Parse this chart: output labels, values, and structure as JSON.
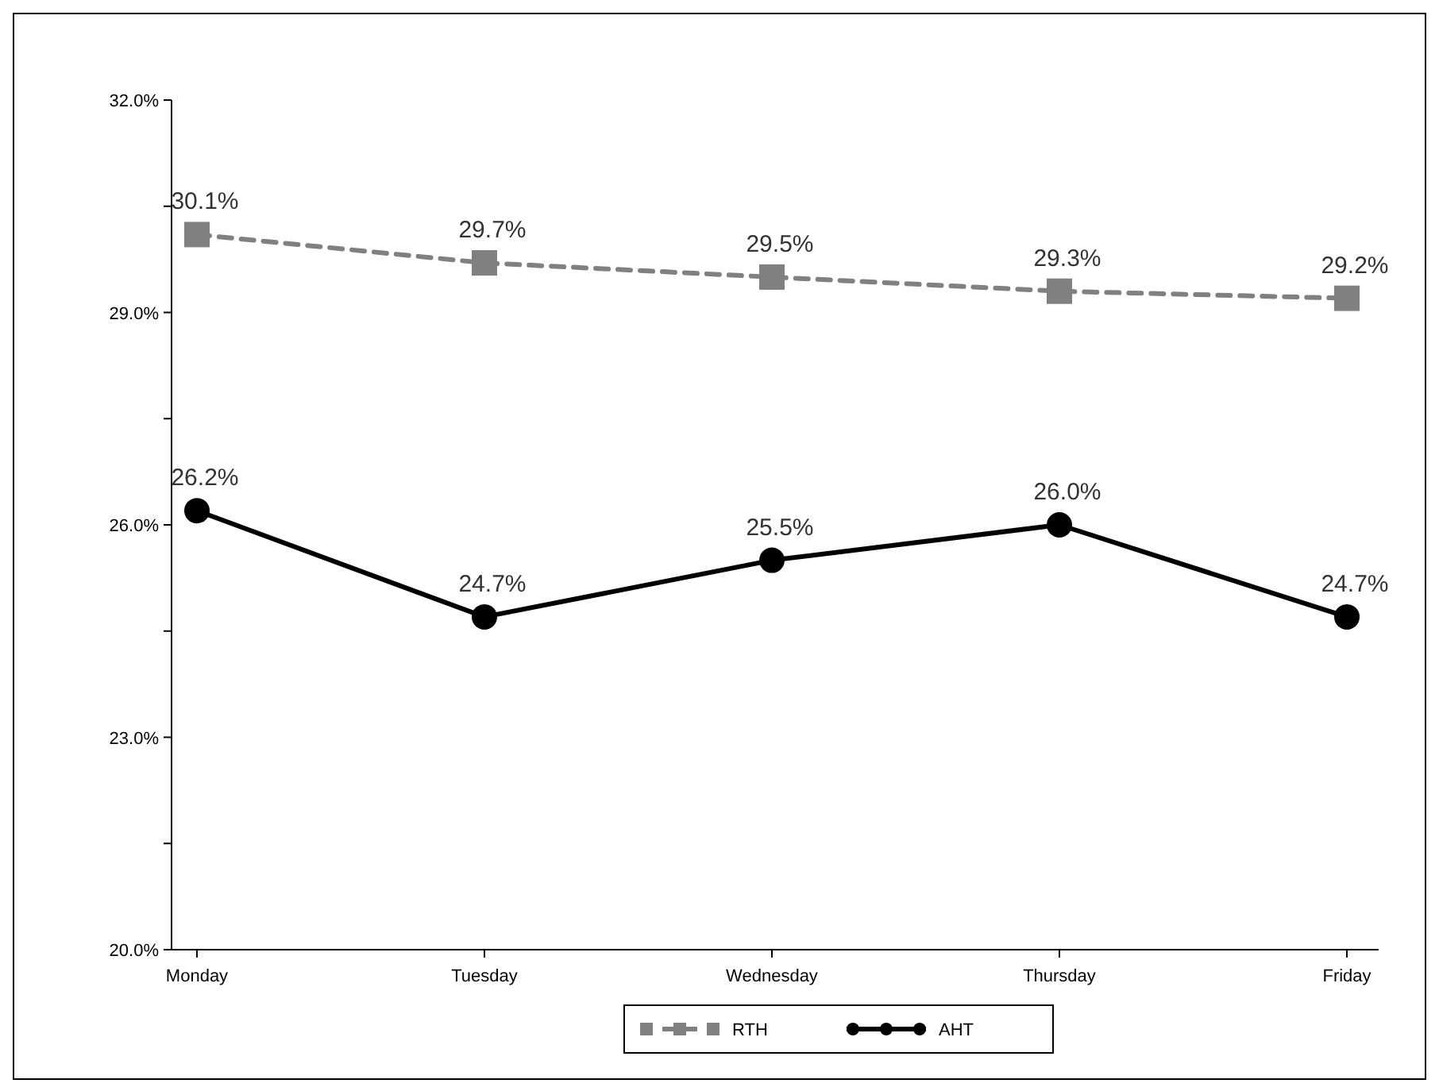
{
  "chart_data": {
    "type": "line",
    "categories": [
      "Monday",
      "Tuesday",
      "Wednesday",
      "Thursday",
      "Friday"
    ],
    "series": [
      {
        "name": "RTH",
        "color": "#808080",
        "values": [
          30.1,
          29.7,
          29.5,
          29.3,
          29.2
        ],
        "marker": "square",
        "line_style": "dashed",
        "value_labels": [
          "30.1%",
          "29.7%",
          "29.5%",
          "29.3%",
          "29.2%"
        ]
      },
      {
        "name": "AHT",
        "color": "#000000",
        "values": [
          26.2,
          24.7,
          25.5,
          26.0,
          24.7
        ],
        "marker": "circle",
        "line_style": "solid",
        "value_labels": [
          "26.2%",
          "24.7%",
          "25.5%",
          "26.0%",
          "24.7%"
        ]
      }
    ],
    "ylim": [
      20,
      32
    ],
    "yticks": [
      {
        "value": 20,
        "label": "20.0%"
      },
      {
        "value": 21.5,
        "label": null
      },
      {
        "value": 23,
        "label": "23.0%"
      },
      {
        "value": 24.5,
        "label": null
      },
      {
        "value": 26,
        "label": "26.0%"
      },
      {
        "value": 27.5,
        "label": null
      },
      {
        "value": 29,
        "label": "29.0%"
      },
      {
        "value": 30.5,
        "label": null
      },
      {
        "value": 32,
        "label": "32.0%"
      }
    ],
    "grid": false,
    "legend": "bottom"
  }
}
